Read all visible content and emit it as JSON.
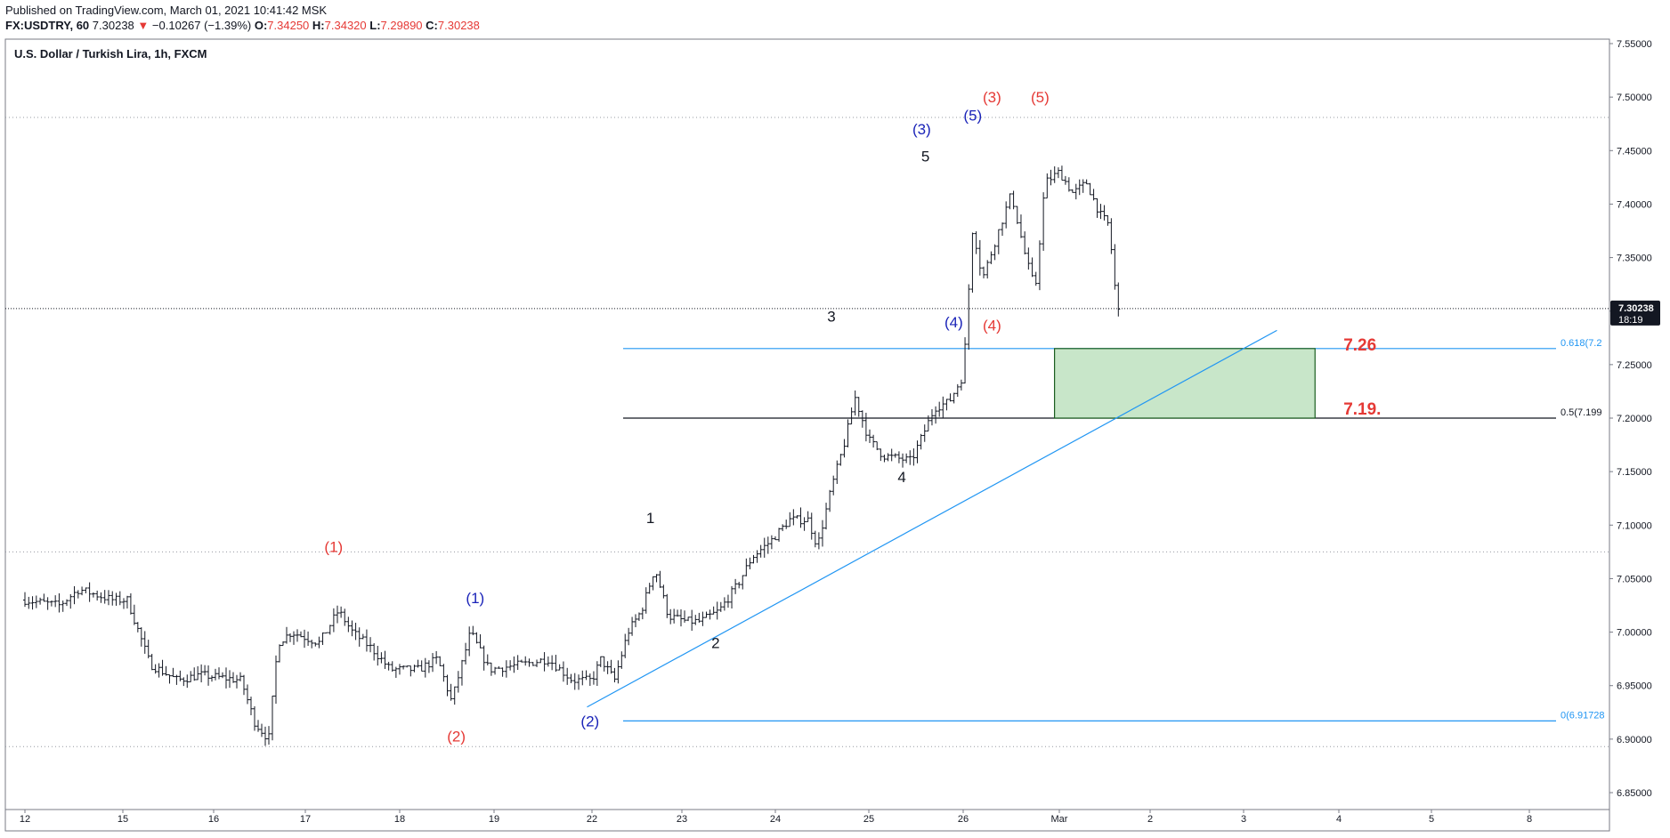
{
  "header": {
    "published": "Published on TradingView.com, March 01, 2021 10:41:42 MSK",
    "symbol": "FX:USDTRY, 60",
    "last": "7.30238",
    "change_arrow": "▼",
    "change": "−0.10267 (−1.39%)",
    "o_label": "O:",
    "o": "7.34250",
    "h_label": "H:",
    "h": "7.34320",
    "l_label": "L:",
    "l": "7.29890",
    "c_label": "C:",
    "c": "7.30238"
  },
  "chart_data": {
    "type": "bar",
    "title": "U.S. Dollar / Turkish Lira, 1h, FXCM",
    "ylim": [
      6.825,
      7.555
    ],
    "y_ticks": [
      "7.55000",
      "7.50000",
      "7.45000",
      "7.40000",
      "7.35000",
      "7.30000",
      "7.25000",
      "7.20000",
      "7.15000",
      "7.10000",
      "7.05000",
      "7.00000",
      "6.95000",
      "6.90000",
      "6.85000"
    ],
    "x_ticks": [
      {
        "label": "12",
        "day": 0
      },
      {
        "label": "15",
        "day": 1
      },
      {
        "label": "16",
        "day": 2
      },
      {
        "label": "17",
        "day": 3
      },
      {
        "label": "18",
        "day": 4
      },
      {
        "label": "19",
        "day": 5
      },
      {
        "label": "22",
        "day": 6
      },
      {
        "label": "23",
        "day": 7
      },
      {
        "label": "24",
        "day": 8
      },
      {
        "label": "25",
        "day": 9
      },
      {
        "label": "26",
        "day": 10
      },
      {
        "label": "Mar",
        "day": 11
      },
      {
        "label": "2",
        "day": 12
      },
      {
        "label": "3",
        "day": 13
      },
      {
        "label": "4",
        "day": 14
      },
      {
        "label": "5",
        "day": 15
      },
      {
        "label": "8",
        "day": 16
      }
    ],
    "price_path": [
      [
        0,
        7.03
      ],
      [
        0.35,
        7.025
      ],
      [
        0.55,
        7.04
      ],
      [
        0.9,
        7.03
      ],
      [
        1.05,
        7.03
      ],
      [
        1.3,
        6.97
      ],
      [
        1.6,
        6.955
      ],
      [
        1.85,
        6.96
      ],
      [
        2.3,
        6.955
      ],
      [
        2.45,
        6.915
      ],
      [
        2.6,
        6.9
      ],
      [
        2.7,
        6.99
      ],
      [
        2.85,
        7.0
      ],
      [
        3.15,
        6.99
      ],
      [
        3.35,
        7.02
      ],
      [
        3.5,
        7.0
      ],
      [
        3.7,
        6.985
      ],
      [
        3.9,
        6.965
      ],
      [
        4.2,
        6.965
      ],
      [
        4.4,
        6.975
      ],
      [
        4.55,
        6.935
      ],
      [
        4.75,
        7.0
      ],
      [
        4.95,
        6.965
      ],
      [
        5.3,
        6.97
      ],
      [
        5.55,
        6.975
      ],
      [
        5.8,
        6.955
      ],
      [
        6.0,
        6.955
      ],
      [
        6.1,
        6.975
      ],
      [
        6.25,
        6.955
      ],
      [
        6.4,
        7.0
      ],
      [
        6.55,
        7.02
      ],
      [
        6.7,
        7.06
      ],
      [
        6.85,
        7.015
      ],
      [
        7.05,
        7.01
      ],
      [
        7.2,
        7.01
      ],
      [
        7.4,
        7.02
      ],
      [
        7.6,
        7.045
      ],
      [
        7.75,
        7.07
      ],
      [
        7.95,
        7.085
      ],
      [
        8.15,
        7.105
      ],
      [
        8.35,
        7.105
      ],
      [
        8.45,
        7.08
      ],
      [
        8.6,
        7.135
      ],
      [
        8.75,
        7.18
      ],
      [
        8.85,
        7.22
      ],
      [
        9.0,
        7.18
      ],
      [
        9.15,
        7.165
      ],
      [
        9.45,
        7.16
      ],
      [
        9.55,
        7.18
      ],
      [
        9.7,
        7.21
      ],
      [
        9.85,
        7.215
      ],
      [
        10.0,
        7.24
      ],
      [
        10.05,
        7.31
      ],
      [
        10.1,
        7.38
      ],
      [
        10.2,
        7.33
      ],
      [
        10.35,
        7.37
      ],
      [
        10.5,
        7.41
      ],
      [
        10.65,
        7.35
      ],
      [
        10.75,
        7.32
      ],
      [
        10.85,
        7.42
      ],
      [
        11.0,
        7.43
      ],
      [
        11.15,
        7.41
      ],
      [
        11.3,
        7.42
      ],
      [
        11.45,
        7.39
      ],
      [
        11.55,
        7.38
      ],
      [
        11.6,
        7.33
      ],
      [
        11.65,
        7.3
      ]
    ],
    "wave_labels": [
      {
        "text": "(1)",
        "color": "#e53935",
        "day": 3.3,
        "price": 7.075
      },
      {
        "text": "(2)",
        "color": "#e53935",
        "day": 4.6,
        "price": 6.898
      },
      {
        "text": "(1)",
        "color": "#1a23b8",
        "day": 4.8,
        "price": 7.027
      },
      {
        "text": "(2)",
        "color": "#1a23b8",
        "day": 5.98,
        "price": 6.912
      },
      {
        "text": "1",
        "color": "#131722",
        "day": 6.65,
        "price": 7.102
      },
      {
        "text": "2",
        "color": "#131722",
        "day": 7.36,
        "price": 6.985
      },
      {
        "text": "3",
        "color": "#131722",
        "day": 8.6,
        "price": 7.29
      },
      {
        "text": "4",
        "color": "#131722",
        "day": 9.35,
        "price": 7.14
      },
      {
        "text": "5",
        "color": "#131722",
        "day": 9.6,
        "price": 7.44
      },
      {
        "text": "(3)",
        "color": "#1a23b8",
        "day": 9.56,
        "price": 7.465
      },
      {
        "text": "(5)",
        "color": "#1a23b8",
        "day": 10.1,
        "price": 7.478
      },
      {
        "text": "(4)",
        "color": "#1a23b8",
        "day": 9.9,
        "price": 7.285
      },
      {
        "text": "(3)",
        "color": "#e53935",
        "day": 10.3,
        "price": 7.495
      },
      {
        "text": "(5)",
        "color": "#e53935",
        "day": 10.8,
        "price": 7.495
      },
      {
        "text": "(4)",
        "color": "#e53935",
        "day": 10.3,
        "price": 7.282
      }
    ],
    "fib_levels": [
      {
        "label": "0.618(7.2",
        "price": 7.265,
        "color": "#2196f3"
      },
      {
        "label": "0.5(7.199",
        "price": 7.2,
        "color": "#131722"
      },
      {
        "label": "0(6.91728",
        "price": 6.917,
        "color": "#2196f3"
      }
    ],
    "target_zone": {
      "day_from": 10.95,
      "day_to": 13.75,
      "price_from": 7.2,
      "price_to": 7.265,
      "color": "#c8e6c9",
      "border": "#1b5e20"
    },
    "target_labels": [
      {
        "text": "7.26",
        "price": 7.27,
        "day": 14.05
      },
      {
        "text": "7.19.",
        "price": 7.21,
        "day": 14.05
      }
    ],
    "trendline": {
      "day_from": 5.95,
      "price_from": 6.93,
      "day_to": 13.35,
      "price_to": 7.282,
      "color": "#2196f3"
    },
    "dotted_levels": [
      7.481,
      7.075,
      6.893
    ],
    "current_price": {
      "value": "7.30238",
      "countdown": "18:19",
      "price": 7.3024
    }
  }
}
